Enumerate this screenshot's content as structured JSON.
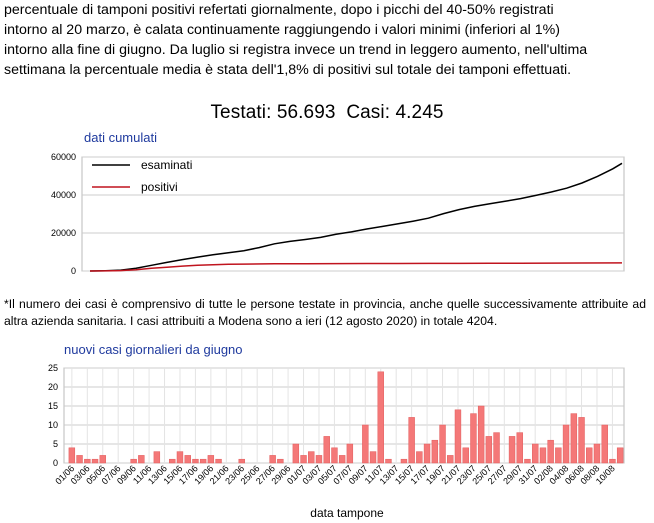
{
  "intro": {
    "line1": "percentuale di tamponi positivi refertati giornalmente, dopo i picchi del 40-50% registrati",
    "line2": "intorno al 20 marzo, è calata continuamente raggiungendo i valori minimi (inferiori al 1%)",
    "line3": "intorno alla fine di giugno. Da luglio si registra invece un trend in leggero aumento, nell'ultima",
    "line4": "settimana la percentuale media è stata dell'1,8% di positivi sul totale dei tamponi effettuati."
  },
  "headline": {
    "tested": "Testati: 56.693",
    "cases": "Casi: 4.245"
  },
  "note": {
    "text": "*Il numero dei casi è comprensivo di tutte le persone testate in provincia, anche quelle successivamente attribuite ad altra azienda sanitaria. I casi attribuiti a Modena sono a ieri (12 agosto 2020) in totale 4204."
  },
  "colors": {
    "examined": "#000000",
    "positive": "#c0141e",
    "bar": "#f47878",
    "bar_stroke": "#e25d5d",
    "title": "#1f3a9e",
    "grid": "#cccccc"
  },
  "chart_data": [
    {
      "type": "line",
      "title": "dati cumulati",
      "yticks": [
        "0",
        "20000",
        "40000",
        "60000"
      ],
      "ylim": [
        0,
        60000
      ],
      "grid": true,
      "legend": "top-left",
      "series": [
        {
          "name": "esaminati",
          "x": [
            0,
            5,
            10,
            15,
            20,
            25,
            30,
            35,
            40,
            45,
            50,
            55,
            60,
            65,
            70,
            75,
            80,
            85,
            90,
            95,
            100,
            105,
            110,
            115,
            120,
            125,
            130,
            135,
            140,
            145,
            150,
            155,
            160,
            165,
            170,
            173
          ],
          "values": [
            0,
            150,
            500,
            1500,
            3000,
            4500,
            6000,
            7300,
            8500,
            9600,
            10700,
            12300,
            14300,
            15600,
            16600,
            17700,
            19300,
            20600,
            22100,
            23400,
            24800,
            26200,
            27800,
            30200,
            32300,
            34000,
            35400,
            36700,
            38100,
            39800,
            41600,
            43600,
            46300,
            49800,
            53800,
            56693
          ]
        },
        {
          "name": "positivi",
          "x": [
            0,
            5,
            10,
            15,
            20,
            25,
            30,
            35,
            40,
            45,
            50,
            60,
            70,
            80,
            90,
            100,
            110,
            120,
            130,
            140,
            150,
            160,
            173
          ],
          "values": [
            0,
            50,
            200,
            700,
            1400,
            2000,
            2600,
            3000,
            3300,
            3500,
            3650,
            3800,
            3850,
            3900,
            3930,
            3960,
            3990,
            4020,
            4060,
            4100,
            4150,
            4200,
            4245
          ]
        }
      ]
    },
    {
      "type": "bar",
      "title": "nuovi casi giornalieri da giugno",
      "xlabel": "data tampone",
      "yticks": [
        "0",
        "5",
        "10",
        "15",
        "20",
        "25"
      ],
      "ylim": [
        0,
        25
      ],
      "grid": true,
      "tick_labels": [
        "01/06",
        "03/06",
        "05/06",
        "07/06",
        "09/06",
        "11/06",
        "13/06",
        "15/06",
        "17/06",
        "19/06",
        "21/06",
        "23/06",
        "25/06",
        "27/06",
        "29/06",
        "01/07",
        "03/07",
        "05/07",
        "07/07",
        "09/07",
        "11/07",
        "13/07",
        "15/07",
        "17/07",
        "19/07",
        "21/07",
        "23/07",
        "25/07",
        "27/07",
        "29/07",
        "31/07",
        "02/08",
        "04/08",
        "06/08",
        "08/08",
        "10/08"
      ],
      "values": [
        4,
        2,
        1,
        1,
        2,
        0,
        0,
        0,
        1,
        2,
        0,
        3,
        0,
        1,
        3,
        2,
        1,
        1,
        2,
        1,
        0,
        0,
        1,
        0,
        0,
        0,
        2,
        1,
        0,
        5,
        2,
        3,
        2,
        7,
        4,
        2,
        5,
        0,
        10,
        3,
        24,
        1,
        0,
        1,
        12,
        3,
        5,
        6,
        10,
        2,
        14,
        4,
        13,
        15,
        7,
        8,
        0,
        7,
        8,
        1,
        5,
        4,
        6,
        4,
        10,
        13,
        12,
        4,
        5,
        10,
        1,
        4
      ]
    }
  ]
}
